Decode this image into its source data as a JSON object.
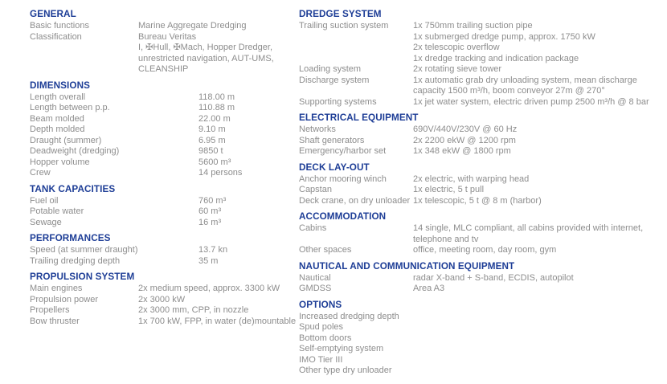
{
  "theme": {
    "header_color": "#1d3d96",
    "body_text_color": "#8d8d8d",
    "background_color": "#ffffff"
  },
  "document_type": "vessel-specification-sheet",
  "columns": [
    {
      "sections": [
        {
          "title": "GENERAL",
          "label_width": 135,
          "rows": [
            {
              "label": "Basic functions",
              "values": [
                "Marine Aggregate Dredging"
              ]
            },
            {
              "label": "Classification",
              "values": [
                "Bureau Veritas",
                "I, ✠Hull, ✠Mach, Hopper Dredger,",
                "unrestricted navigation, AUT-UMS,",
                "CLEANSHIP"
              ]
            }
          ]
        },
        {
          "title": "DIMENSIONS",
          "label_width": 210,
          "rows": [
            {
              "label": "Length overall",
              "values": [
                "118.00 m"
              ]
            },
            {
              "label": "Length between p.p.",
              "values": [
                "110.88 m"
              ]
            },
            {
              "label": "Beam molded",
              "values": [
                "22.00 m"
              ]
            },
            {
              "label": "Depth molded",
              "values": [
                "9.10 m"
              ]
            },
            {
              "label": "Draught (summer)",
              "values": [
                "6.95 m"
              ]
            },
            {
              "label": "Deadweight (dredging)",
              "values": [
                "9850 t"
              ]
            },
            {
              "label": "Hopper volume",
              "values": [
                "5600 m³"
              ]
            },
            {
              "label": "Crew",
              "values": [
                "14 persons"
              ]
            }
          ]
        },
        {
          "title": "TANK CAPACITIES",
          "label_width": 210,
          "rows": [
            {
              "label": "Fuel oil",
              "values": [
                "760 m³"
              ]
            },
            {
              "label": "Potable water",
              "values": [
                "60 m³"
              ]
            },
            {
              "label": "Sewage",
              "values": [
                "16 m³"
              ]
            }
          ]
        },
        {
          "title": "PERFORMANCES",
          "label_width": 210,
          "rows": [
            {
              "label": "Speed (at summer draught)",
              "values": [
                "13.7 kn"
              ]
            },
            {
              "label": "Trailing dredging depth",
              "values": [
                "35 m"
              ]
            }
          ]
        },
        {
          "title": "PROPULSION SYSTEM",
          "label_width": 135,
          "rows": [
            {
              "label": "Main engines",
              "values": [
                "2x medium speed, approx. 3300 kW"
              ]
            },
            {
              "label": "Propulsion power",
              "values": [
                "2x 3000 kW"
              ]
            },
            {
              "label": "Propellers",
              "values": [
                "2x 3000 mm, CPP, in nozzle"
              ]
            },
            {
              "label": "Bow thruster",
              "values": [
                "1x 700 kW, FPP, in water (de)mountable"
              ]
            }
          ]
        }
      ]
    },
    {
      "sections": [
        {
          "title": "DREDGE SYSTEM",
          "label_width": 142,
          "rows": [
            {
              "label": "Trailing suction system",
              "values": [
                "1x 750mm trailing suction pipe",
                "1x submerged dredge pump, approx. 1750 kW",
                "2x telescopic overflow",
                "1x dredge tracking and indication package"
              ]
            },
            {
              "label": "Loading system",
              "values": [
                "2x rotating sieve tower"
              ]
            },
            {
              "label": "Discharge system",
              "values": [
                "1x automatic grab dry unloading system, mean discharge",
                "capacity 1500 m³/h, boom conveyor 27m @ 270°"
              ]
            },
            {
              "label": "Supporting systems",
              "values": [
                "1x jet water system, electric driven pump 2500 m³/h @ 8 bar"
              ]
            }
          ]
        },
        {
          "title": "ELECTRICAL EQUIPMENT",
          "label_width": 142,
          "rows": [
            {
              "label": "Networks",
              "values": [
                "690V/440V/230V @ 60 Hz"
              ]
            },
            {
              "label": "Shaft generators",
              "values": [
                "2x 2200 ekW @ 1200 rpm"
              ]
            },
            {
              "label": "Emergency/harbor set",
              "values": [
                "1x 348 ekW @ 1800 rpm"
              ]
            }
          ]
        },
        {
          "title": "DECK LAY-OUT",
          "label_width": 142,
          "rows": [
            {
              "label": "Anchor mooring winch",
              "values": [
                "2x electric, with warping head"
              ]
            },
            {
              "label": "Capstan",
              "values": [
                "1x electric, 5 t pull"
              ]
            },
            {
              "label": "Deck crane, on dry unloader",
              "values": [
                "1x telescopic, 5 t @ 8 m (harbor)"
              ]
            }
          ]
        },
        {
          "title": "ACCOMMODATION",
          "label_width": 142,
          "rows": [
            {
              "label": "Cabins",
              "values": [
                "14 single, MLC compliant, all cabins provided with internet,",
                "telephone and tv"
              ]
            },
            {
              "label": "Other spaces",
              "values": [
                "office, meeting room, day room, gym"
              ]
            }
          ]
        },
        {
          "title": "NAUTICAL AND COMMUNICATION EQUIPMENT",
          "label_width": 142,
          "rows": [
            {
              "label": "Nautical",
              "values": [
                "radar X-band + S-band, ECDIS, autopilot"
              ]
            },
            {
              "label": "GMDSS",
              "values": [
                "Area A3"
              ]
            }
          ]
        },
        {
          "title": "OPTIONS",
          "label_width": 320,
          "rows": [
            {
              "label": "Increased dredging depth",
              "values": []
            },
            {
              "label": "Spud poles",
              "values": []
            },
            {
              "label": "Bottom doors",
              "values": []
            },
            {
              "label": "Self-emptying system",
              "values": []
            },
            {
              "label": "IMO Tier III",
              "values": []
            },
            {
              "label": "Other type dry unloader",
              "values": []
            }
          ]
        }
      ]
    }
  ]
}
